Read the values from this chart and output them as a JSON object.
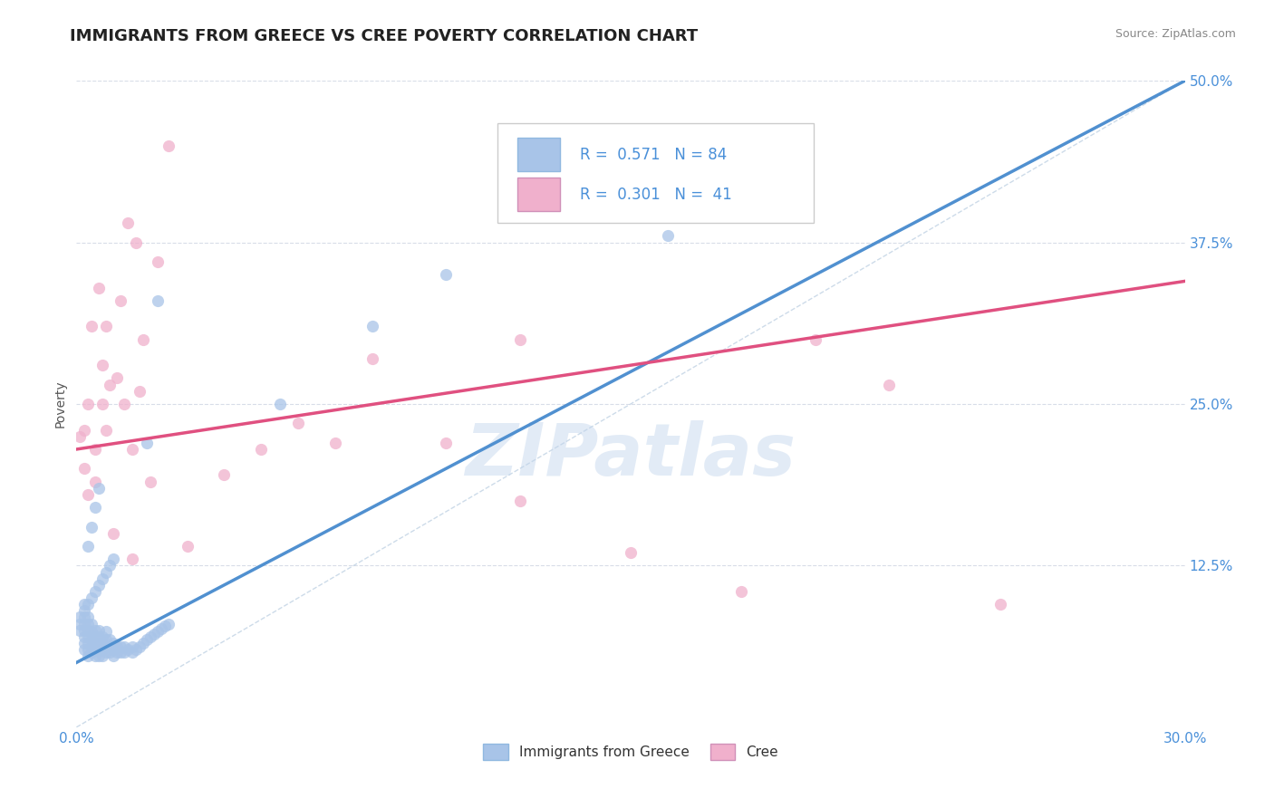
{
  "title": "IMMIGRANTS FROM GREECE VS CREE POVERTY CORRELATION CHART",
  "source_text": "Source: ZipAtlas.com",
  "ylabel": "Poverty",
  "xlim": [
    0.0,
    0.3
  ],
  "ylim": [
    0.0,
    0.5
  ],
  "xticks": [
    0.0,
    0.05,
    0.1,
    0.15,
    0.2,
    0.25,
    0.3
  ],
  "xticklabels": [
    "0.0%",
    "",
    "",
    "",
    "",
    "",
    "30.0%"
  ],
  "yticks": [
    0.0,
    0.125,
    0.25,
    0.375,
    0.5
  ],
  "yticklabels": [
    "",
    "12.5%",
    "25.0%",
    "37.5%",
    "50.0%"
  ],
  "blue_color": "#a8c4e8",
  "pink_color": "#f0b0cc",
  "blue_line_color": "#5090d0",
  "pink_line_color": "#e05080",
  "legend_R1": "0.571",
  "legend_N1": "84",
  "legend_R2": "0.301",
  "legend_N2": "41",
  "legend_label1": "Immigrants from Greece",
  "legend_label2": "Cree",
  "watermark": "ZIPatlas",
  "title_fontsize": 13,
  "axis_label_fontsize": 10,
  "tick_fontsize": 11,
  "background_color": "#ffffff",
  "grid_color": "#d8dde8",
  "blue_trend_x": [
    0.0,
    0.3
  ],
  "blue_trend_y": [
    0.05,
    0.5
  ],
  "pink_trend_x": [
    0.0,
    0.3
  ],
  "pink_trend_y": [
    0.215,
    0.345
  ],
  "blue_scatter_x": [
    0.001,
    0.001,
    0.001,
    0.002,
    0.002,
    0.002,
    0.002,
    0.002,
    0.002,
    0.002,
    0.002,
    0.003,
    0.003,
    0.003,
    0.003,
    0.003,
    0.003,
    0.003,
    0.004,
    0.004,
    0.004,
    0.004,
    0.004,
    0.005,
    0.005,
    0.005,
    0.005,
    0.005,
    0.006,
    0.006,
    0.006,
    0.006,
    0.006,
    0.007,
    0.007,
    0.007,
    0.007,
    0.008,
    0.008,
    0.008,
    0.008,
    0.009,
    0.009,
    0.009,
    0.01,
    0.01,
    0.01,
    0.011,
    0.011,
    0.012,
    0.012,
    0.013,
    0.013,
    0.014,
    0.015,
    0.015,
    0.016,
    0.017,
    0.018,
    0.019,
    0.02,
    0.021,
    0.022,
    0.023,
    0.024,
    0.025,
    0.003,
    0.004,
    0.005,
    0.006,
    0.007,
    0.008,
    0.009,
    0.01,
    0.003,
    0.004,
    0.005,
    0.006,
    0.055,
    0.08,
    0.1,
    0.16,
    0.019,
    0.022
  ],
  "blue_scatter_y": [
    0.075,
    0.08,
    0.085,
    0.06,
    0.065,
    0.07,
    0.075,
    0.08,
    0.085,
    0.09,
    0.095,
    0.055,
    0.06,
    0.065,
    0.07,
    0.075,
    0.08,
    0.085,
    0.058,
    0.062,
    0.068,
    0.074,
    0.08,
    0.055,
    0.06,
    0.065,
    0.07,
    0.075,
    0.055,
    0.06,
    0.065,
    0.07,
    0.075,
    0.055,
    0.06,
    0.065,
    0.07,
    0.058,
    0.062,
    0.068,
    0.074,
    0.058,
    0.062,
    0.068,
    0.055,
    0.06,
    0.065,
    0.058,
    0.062,
    0.058,
    0.062,
    0.058,
    0.062,
    0.06,
    0.058,
    0.062,
    0.06,
    0.062,
    0.065,
    0.068,
    0.07,
    0.072,
    0.074,
    0.076,
    0.078,
    0.08,
    0.095,
    0.1,
    0.105,
    0.11,
    0.115,
    0.12,
    0.125,
    0.13,
    0.14,
    0.155,
    0.17,
    0.185,
    0.25,
    0.31,
    0.35,
    0.38,
    0.22,
    0.33
  ],
  "pink_scatter_x": [
    0.001,
    0.002,
    0.002,
    0.003,
    0.003,
    0.004,
    0.005,
    0.005,
    0.006,
    0.007,
    0.007,
    0.008,
    0.009,
    0.01,
    0.011,
    0.012,
    0.013,
    0.014,
    0.015,
    0.016,
    0.017,
    0.018,
    0.02,
    0.022,
    0.025,
    0.03,
    0.04,
    0.05,
    0.06,
    0.08,
    0.1,
    0.12,
    0.15,
    0.18,
    0.2,
    0.22,
    0.25,
    0.12,
    0.07,
    0.008,
    0.015
  ],
  "pink_scatter_y": [
    0.225,
    0.2,
    0.23,
    0.18,
    0.25,
    0.31,
    0.215,
    0.19,
    0.34,
    0.25,
    0.28,
    0.31,
    0.265,
    0.15,
    0.27,
    0.33,
    0.25,
    0.39,
    0.215,
    0.375,
    0.26,
    0.3,
    0.19,
    0.36,
    0.45,
    0.14,
    0.195,
    0.215,
    0.235,
    0.285,
    0.22,
    0.175,
    0.135,
    0.105,
    0.3,
    0.265,
    0.095,
    0.3,
    0.22,
    0.23,
    0.13
  ]
}
